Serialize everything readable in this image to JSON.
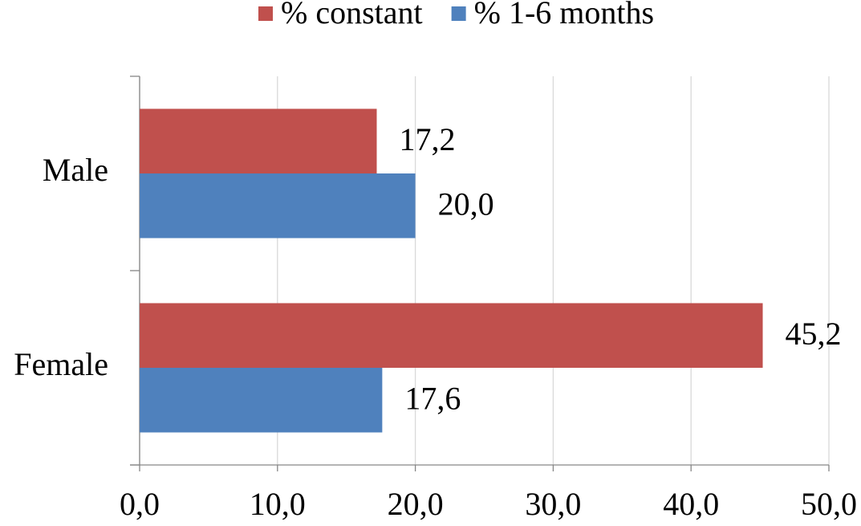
{
  "chart_data": {
    "type": "hbar",
    "categories": [
      "Male",
      "Female"
    ],
    "series": [
      {
        "name": "% constant",
        "color": "#c0504d",
        "values": [
          17.2,
          45.2
        ],
        "value_labels": [
          "17,2",
          "45,2"
        ]
      },
      {
        "name": "% 1-6 months",
        "color": "#4f81bd",
        "values": [
          20.0,
          17.6
        ],
        "value_labels": [
          "20,0",
          "17,6"
        ]
      }
    ],
    "xlim": [
      0,
      50
    ],
    "xticks": [
      {
        "value": 0,
        "label": "0,0"
      },
      {
        "value": 10,
        "label": "10,0"
      },
      {
        "value": 20,
        "label": "20,0"
      },
      {
        "value": 30,
        "label": "30,0"
      },
      {
        "value": 40,
        "label": "40,0"
      },
      {
        "value": 50,
        "label": "50,0"
      }
    ],
    "grid": true,
    "legend": "top"
  }
}
